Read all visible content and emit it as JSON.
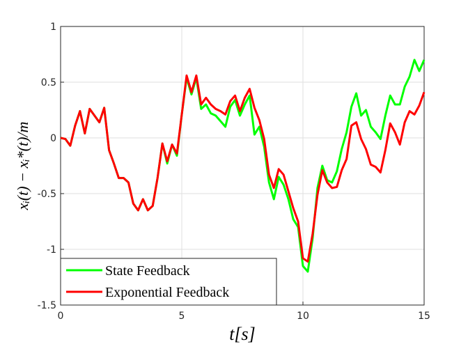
{
  "chart_data": {
    "type": "line",
    "xlabel": "t[s]",
    "ylabel": "xᵢ(t) − xᵢ*(t)/m",
    "x": [
      0,
      0.2,
      0.4,
      0.6,
      0.8,
      1,
      1.2,
      1.4,
      1.6,
      1.8,
      2,
      2.2,
      2.4,
      2.6,
      2.8,
      3,
      3.2,
      3.4,
      3.6,
      3.8,
      4,
      4.2,
      4.4,
      4.6,
      4.8,
      5,
      5.2,
      5.4,
      5.6,
      5.8,
      6,
      6.2,
      6.4,
      6.6,
      6.8,
      7,
      7.2,
      7.4,
      7.6,
      7.8,
      8,
      8.2,
      8.4,
      8.6,
      8.8,
      9,
      9.2,
      9.4,
      9.6,
      9.8,
      10,
      10.2,
      10.4,
      10.6,
      10.8,
      11,
      11.2,
      11.4,
      11.6,
      11.8,
      12,
      12.2,
      12.4,
      12.6,
      12.8,
      13,
      13.2,
      13.4,
      13.6,
      13.8,
      14,
      14.2,
      14.4,
      14.6,
      14.8,
      15
    ],
    "series": [
      {
        "name": "State Feedback",
        "color": "#00ff00",
        "values": [
          0,
          -0.01,
          -0.07,
          0.11,
          0.24,
          0.04,
          0.26,
          0.2,
          0.14,
          0.27,
          -0.11,
          -0.23,
          -0.36,
          -0.36,
          -0.4,
          -0.59,
          -0.65,
          -0.55,
          -0.65,
          -0.61,
          -0.36,
          -0.05,
          -0.23,
          -0.06,
          -0.16,
          0.21,
          0.54,
          0.39,
          0.54,
          0.26,
          0.3,
          0.22,
          0.2,
          0.15,
          0.1,
          0.28,
          0.34,
          0.2,
          0.3,
          0.38,
          0.03,
          0.1,
          -0.08,
          -0.4,
          -0.55,
          -0.35,
          -0.42,
          -0.55,
          -0.73,
          -0.8,
          -1.15,
          -1.2,
          -0.9,
          -0.45,
          -0.25,
          -0.38,
          -0.4,
          -0.3,
          -0.1,
          0.05,
          0.28,
          0.4,
          0.2,
          0.25,
          0.1,
          0.05,
          -0.01,
          0.2,
          0.38,
          0.3,
          0.3,
          0.46,
          0.55,
          0.7,
          0.6,
          0.7
        ]
      },
      {
        "name": "Exponential Feedback",
        "color": "#ff0000",
        "values": [
          0,
          -0.01,
          -0.07,
          0.11,
          0.24,
          0.04,
          0.26,
          0.2,
          0.14,
          0.27,
          -0.11,
          -0.23,
          -0.36,
          -0.36,
          -0.4,
          -0.59,
          -0.65,
          -0.55,
          -0.65,
          -0.61,
          -0.36,
          -0.05,
          -0.21,
          -0.06,
          -0.14,
          0.21,
          0.56,
          0.41,
          0.56,
          0.3,
          0.36,
          0.3,
          0.26,
          0.24,
          0.21,
          0.33,
          0.38,
          0.24,
          0.36,
          0.44,
          0.27,
          0.16,
          -0.01,
          -0.33,
          -0.45,
          -0.28,
          -0.33,
          -0.48,
          -0.63,
          -0.75,
          -1.08,
          -1.11,
          -0.86,
          -0.51,
          -0.29,
          -0.4,
          -0.45,
          -0.44,
          -0.29,
          -0.19,
          0.11,
          0.14,
          -0.01,
          -0.1,
          -0.24,
          -0.26,
          -0.31,
          -0.11,
          0.13,
          0.05,
          -0.06,
          0.14,
          0.24,
          0.21,
          0.29,
          0.41
        ]
      }
    ],
    "xlim": [
      0,
      15
    ],
    "xticks": [
      0,
      5,
      10,
      15
    ],
    "ylim": [
      -1.5,
      1
    ],
    "yticks": [
      -1.5,
      -1,
      -0.5,
      0,
      0.5,
      1
    ],
    "grid": true,
    "legend": "southwest"
  }
}
